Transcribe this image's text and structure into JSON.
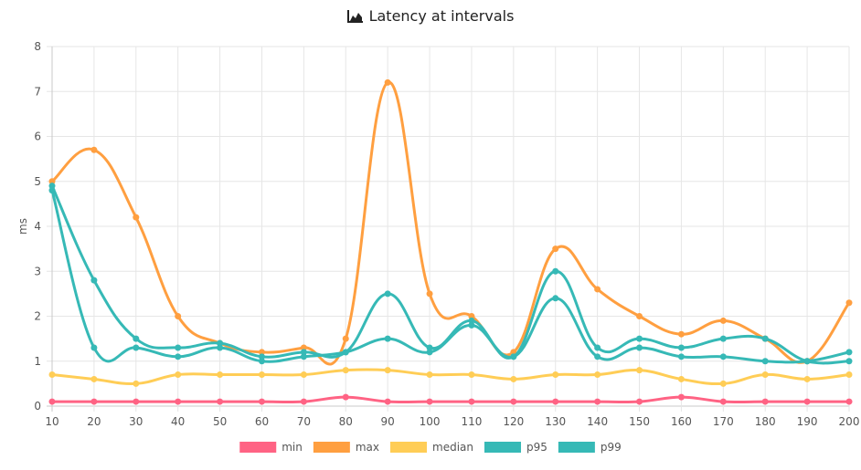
{
  "chart_data": {
    "type": "line",
    "title": "Latency at intervals",
    "title_icon": "area-chart-icon",
    "xlabel": "",
    "ylabel": "ms",
    "x": [
      10,
      20,
      30,
      40,
      50,
      60,
      70,
      80,
      90,
      100,
      110,
      120,
      130,
      140,
      150,
      160,
      170,
      180,
      190,
      200
    ],
    "ylim": [
      0,
      8
    ],
    "yticks": [
      0,
      1,
      2,
      3,
      4,
      5,
      6,
      7,
      8
    ],
    "grid": true,
    "legend_position": "bottom",
    "series": [
      {
        "name": "min",
        "color": "#ff6384",
        "values": [
          0.1,
          0.1,
          0.1,
          0.1,
          0.1,
          0.1,
          0.1,
          0.2,
          0.1,
          0.1,
          0.1,
          0.1,
          0.1,
          0.1,
          0.1,
          0.2,
          0.1,
          0.1,
          0.1,
          0.1
        ]
      },
      {
        "name": "max",
        "color": "#ff9f40",
        "values": [
          5.0,
          5.7,
          4.2,
          2.0,
          1.4,
          1.2,
          1.3,
          1.5,
          7.2,
          2.5,
          2.0,
          1.2,
          3.5,
          2.6,
          2.0,
          1.6,
          1.9,
          1.5,
          1.0,
          2.3
        ]
      },
      {
        "name": "median",
        "color": "#ffcd56",
        "values": [
          0.7,
          0.6,
          0.5,
          0.7,
          0.7,
          0.7,
          0.7,
          0.8,
          0.8,
          0.7,
          0.7,
          0.6,
          0.7,
          0.7,
          0.8,
          0.6,
          0.5,
          0.7,
          0.6,
          0.7
        ]
      },
      {
        "name": "p95",
        "color": "#36b9b6",
        "values": [
          4.8,
          1.3,
          1.3,
          1.1,
          1.3,
          1.0,
          1.1,
          1.2,
          1.5,
          1.2,
          1.8,
          1.1,
          2.4,
          1.1,
          1.3,
          1.1,
          1.1,
          1.0,
          1.0,
          1.2
        ]
      },
      {
        "name": "p99",
        "color": "#36b9b6",
        "values": [
          4.9,
          2.8,
          1.5,
          1.3,
          1.4,
          1.1,
          1.2,
          1.2,
          2.5,
          1.3,
          1.9,
          1.1,
          3.0,
          1.3,
          1.5,
          1.3,
          1.5,
          1.5,
          1.0,
          1.0
        ]
      }
    ]
  }
}
